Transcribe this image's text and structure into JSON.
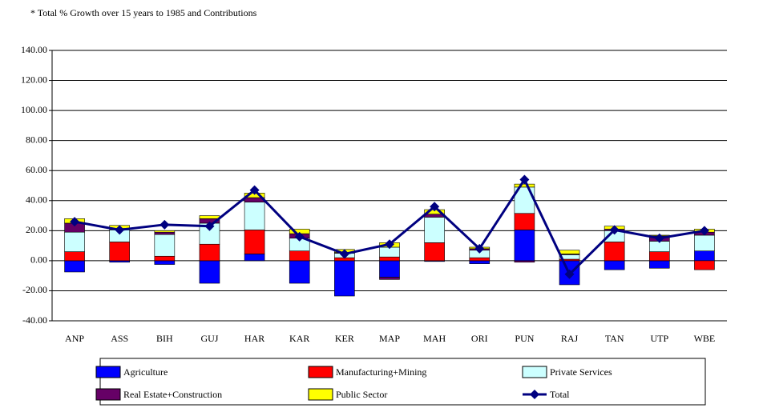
{
  "chart_data": {
    "type": "bar",
    "stacked": true,
    "title": "* Total % Growth over 15 years to 1985 and Contributions",
    "categories": [
      "ANP",
      "ASS",
      "BIH",
      "GUJ",
      "HAR",
      "KAR",
      "KER",
      "MAP",
      "MAH",
      "ORI",
      "PUN",
      "RAJ",
      "TAN",
      "UTP",
      "WBE"
    ],
    "series": [
      {
        "name": "Agriculture",
        "type": "bar",
        "color": "#0000ff",
        "values": [
          -7.5,
          -1,
          -2.5,
          -15,
          4.5,
          -15,
          -23.5,
          -11,
          -0.5,
          -2,
          20.5,
          -16,
          -6,
          -5,
          6.5
        ]
      },
      {
        "name": "Manufacturing+Mining",
        "type": "bar",
        "color": "#ff0000",
        "values": [
          6,
          12.5,
          3,
          11,
          16,
          6.5,
          2,
          2.5,
          12,
          2,
          11,
          1,
          12.5,
          6,
          -6
        ]
      },
      {
        "name": "Private Services",
        "type": "bar",
        "color": "#ccffff",
        "values": [
          13,
          8,
          14.5,
          14,
          18.5,
          8.5,
          3,
          6.5,
          17,
          5,
          17.5,
          3,
          7.5,
          7,
          10.5
        ]
      },
      {
        "name": "Real Estate+Construction",
        "type": "bar",
        "color": "#660066",
        "values": [
          6,
          1,
          1.5,
          3,
          3,
          3,
          0.5,
          -1.5,
          2,
          1,
          -1,
          0.5,
          1,
          3.5,
          2
        ]
      },
      {
        "name": "Public Sector",
        "type": "bar",
        "color": "#ffff00",
        "values": [
          3,
          2,
          1,
          2,
          3,
          3,
          2,
          3,
          3,
          1,
          2,
          2.5,
          2,
          0.5,
          2
        ]
      },
      {
        "name": "Total",
        "type": "line",
        "color": "#000080",
        "values": [
          26,
          20.5,
          24,
          23,
          47,
          16,
          4.5,
          11,
          36,
          8,
          54,
          -9,
          20.5,
          15,
          20
        ]
      }
    ],
    "ylim": [
      -40,
      140
    ],
    "yticks": [
      {
        "value": -40,
        "label": "-40.00"
      },
      {
        "value": -20,
        "label": "-20.00"
      },
      {
        "value": 0,
        "label": "0.00"
      },
      {
        "value": 20,
        "label": "20.00"
      },
      {
        "value": 40,
        "label": "40.00"
      },
      {
        "value": 60,
        "label": "60.00"
      },
      {
        "value": 80,
        "label": "80.00"
      },
      {
        "value": 100,
        "label": "100.00"
      },
      {
        "value": 120,
        "label": "120.00"
      },
      {
        "value": 140,
        "label": "140.00"
      }
    ],
    "grid": true,
    "legend": "bottom"
  }
}
